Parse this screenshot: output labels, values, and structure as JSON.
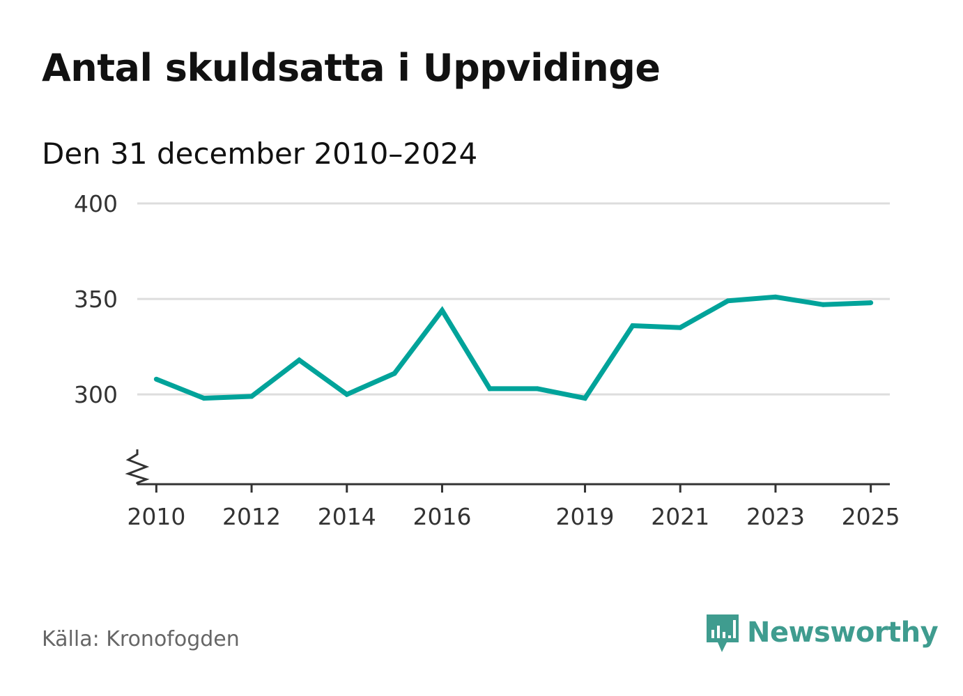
{
  "header": {
    "title": "Antal skuldsatta i Uppvidinge",
    "subtitle": "Den 31 december 2010–2024"
  },
  "footer": {
    "source": "Källa: Kronofogden",
    "brand": "Newsworthy"
  },
  "colors": {
    "line": "#00a39a",
    "grid": "#dddddd",
    "axis": "#333333",
    "brand": "#3f9c8f"
  },
  "icons": {
    "axis_break": "axis-break-icon",
    "brand_logo": "newsworthy-logo-icon"
  },
  "chart_data": {
    "type": "line",
    "title": "Antal skuldsatta i Uppvidinge",
    "subtitle": "Den 31 december 2010–2024",
    "xlabel": "",
    "ylabel": "",
    "x": [
      2010,
      2011,
      2012,
      2013,
      2014,
      2015,
      2016,
      2017,
      2018,
      2019,
      2020,
      2021,
      2022,
      2023,
      2024,
      2025
    ],
    "values": [
      308,
      298,
      299,
      318,
      300,
      311,
      344,
      303,
      303,
      298,
      336,
      335,
      349,
      351,
      347,
      348
    ],
    "ylim": [
      253,
      400
    ],
    "xlim": [
      2009.6,
      2025.4
    ],
    "yticks": [
      {
        "value": 300,
        "label": "300"
      },
      {
        "value": 350,
        "label": "350"
      },
      {
        "value": 400,
        "label": "400"
      }
    ],
    "xticks": [
      {
        "value": 2010,
        "label": "2010"
      },
      {
        "value": 2012,
        "label": "2012"
      },
      {
        "value": 2014,
        "label": "2014"
      },
      {
        "value": 2016,
        "label": "2016"
      },
      {
        "value": 2019,
        "label": "2019"
      },
      {
        "value": 2021,
        "label": "2021"
      },
      {
        "value": 2023,
        "label": "2023"
      },
      {
        "value": 2025,
        "label": "2025"
      }
    ],
    "grid": true,
    "axis_break": true,
    "legend": "none"
  }
}
